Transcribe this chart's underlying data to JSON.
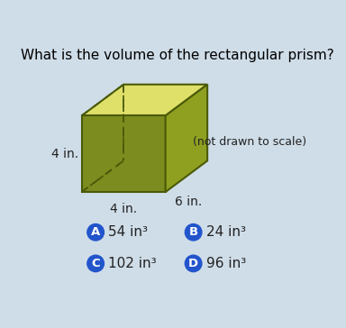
{
  "title": "What is the volume of the rectangular prism?",
  "subtitle": "(not drawn to scale)",
  "dim_left": "4 in.",
  "dim_bottom": "4 in.",
  "dim_right": "6 in.",
  "options": [
    {
      "letter": "A",
      "text": "54 in³"
    },
    {
      "letter": "B",
      "text": "24 in³"
    },
    {
      "letter": "C",
      "text": "102 in³"
    },
    {
      "letter": "D",
      "text": "96 in³"
    }
  ],
  "bg_color": "#cfdde8",
  "box_color_top": "#dfe06a",
  "box_color_front": "#7d8c1e",
  "box_color_side": "#8fa020",
  "box_outline": "#4a5a08",
  "circle_color": "#2255cc",
  "circle_text_color": "#ffffff",
  "title_color": "#000000",
  "label_color": "#222222"
}
